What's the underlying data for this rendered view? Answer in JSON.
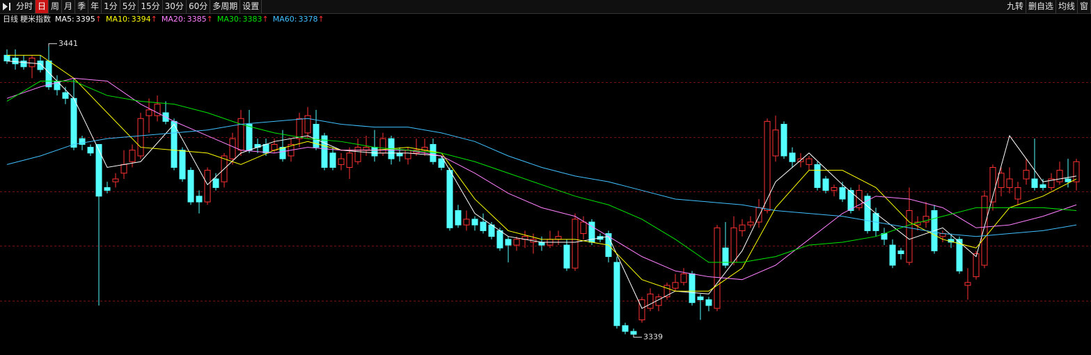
{
  "toolbar": {
    "periods": [
      {
        "label": "分时"
      },
      {
        "label": "日",
        "active": true
      },
      {
        "label": "周"
      },
      {
        "label": "月"
      },
      {
        "label": "季"
      },
      {
        "label": "年"
      },
      {
        "label": "1分"
      },
      {
        "label": "5分"
      },
      {
        "label": "15分"
      },
      {
        "label": "30分"
      },
      {
        "label": "60分"
      },
      {
        "label": "多周期"
      },
      {
        "label": "设置"
      }
    ],
    "tools": [
      "九转",
      "删自选",
      "均线",
      "窗"
    ]
  },
  "chart_data": {
    "type": "candlestick",
    "period": "日线",
    "title": "粳米指数",
    "ylim": [
      3334,
      3447
    ],
    "up_color": "#ff3232",
    "down_color": "#54ffff",
    "candles": {
      "open": [
        3437,
        3436,
        3435,
        3433,
        3435,
        3435,
        3428,
        3424,
        3422,
        3408,
        3405,
        3406,
        3391,
        3393,
        3396,
        3400,
        3402,
        3416,
        3416,
        3417,
        3414,
        3404,
        3397,
        3388,
        3386,
        3394,
        3393,
        3401,
        3404,
        3413,
        3406,
        3406,
        3404,
        3405,
        3402,
        3408,
        3410,
        3413,
        3409,
        3403,
        3399,
        3398,
        3400,
        3404,
        3405,
        3403,
        3408,
        3403,
        3401,
        3403,
        3404,
        3406,
        3401,
        3397,
        3383,
        3378,
        3380,
        3379,
        3378,
        3376,
        3373,
        3371,
        3373,
        3372,
        3372,
        3371,
        3373,
        3371,
        3363,
        3375,
        3379,
        3374,
        3375,
        3365,
        3343,
        3341,
        3345,
        3349,
        3350,
        3353,
        3356,
        3358,
        3361,
        3353,
        3352,
        3349,
        3370,
        3365,
        3376,
        3378,
        3379,
        3383,
        3402,
        3413,
        3403,
        3400,
        3399,
        3399,
        3394,
        3390,
        3391,
        3390,
        3384,
        3388,
        3382,
        3375,
        3371,
        3369,
        3365,
        3378,
        3379,
        3383,
        3374,
        3373,
        3373,
        3357,
        3360,
        3364,
        3386,
        3391,
        3391,
        3387,
        3394,
        3394,
        3392,
        3391,
        3393,
        3394,
        3393
      ],
      "high": [
        3439,
        3439,
        3437,
        3437,
        3437,
        3441,
        3430,
        3426,
        3429,
        3409,
        3406,
        3406,
        3393,
        3396,
        3404,
        3406,
        3417,
        3422,
        3423,
        3421,
        3415,
        3405,
        3398,
        3390,
        3398,
        3396,
        3403,
        3410,
        3418,
        3418,
        3408,
        3408,
        3408,
        3411,
        3408,
        3417,
        3419,
        3418,
        3410,
        3405,
        3403,
        3405,
        3408,
        3409,
        3411,
        3410,
        3409,
        3405,
        3405,
        3408,
        3408,
        3408,
        3402,
        3398,
        3385,
        3383,
        3381,
        3382,
        3379,
        3377,
        3374,
        3374,
        3376,
        3375,
        3374,
        3376,
        3376,
        3373,
        3382,
        3381,
        3380,
        3375,
        3376,
        3367,
        3344,
        3342,
        3353,
        3356,
        3354,
        3358,
        3361,
        3363,
        3362,
        3354,
        3353,
        3378,
        3379,
        3381,
        3380,
        3381,
        3387,
        3415,
        3416,
        3414,
        3405,
        3403,
        3402,
        3400,
        3395,
        3392,
        3393,
        3391,
        3392,
        3389,
        3384,
        3377,
        3373,
        3370,
        3391,
        3381,
        3386,
        3385,
        3376,
        3375,
        3374,
        3363,
        3369,
        3390,
        3399,
        3398,
        3398,
        3393,
        3401,
        3408,
        3394,
        3396,
        3400,
        3401,
        3401
      ],
      "low": [
        3434,
        3432,
        3432,
        3429,
        3431,
        3425,
        3423,
        3420,
        3404,
        3404,
        3402,
        3350,
        3389,
        3391,
        3394,
        3398,
        3401,
        3410,
        3414,
        3413,
        3397,
        3393,
        3385,
        3382,
        3385,
        3390,
        3391,
        3399,
        3402,
        3403,
        3403,
        3402,
        3403,
        3400,
        3400,
        3405,
        3408,
        3404,
        3397,
        3397,
        3397,
        3394,
        3399,
        3402,
        3400,
        3402,
        3399,
        3400,
        3399,
        3402,
        3402,
        3399,
        3397,
        3376,
        3377,
        3376,
        3376,
        3375,
        3373,
        3369,
        3365,
        3369,
        3370,
        3368,
        3369,
        3370,
        3371,
        3362,
        3362,
        3373,
        3371,
        3372,
        3365,
        3342,
        3340,
        3339,
        3344,
        3348,
        3348,
        3352,
        3355,
        3357,
        3350,
        3345,
        3348,
        3348,
        3363,
        3364,
        3374,
        3377,
        3377,
        3382,
        3400,
        3401,
        3398,
        3398,
        3397,
        3390,
        3389,
        3388,
        3386,
        3382,
        3383,
        3375,
        3374,
        3371,
        3363,
        3366,
        3364,
        3376,
        3377,
        3368,
        3372,
        3370,
        3361,
        3352,
        3359,
        3363,
        3383,
        3388,
        3389,
        3385,
        3392,
        3390,
        3390,
        3390,
        3392,
        3391,
        3390
      ],
      "close": [
        3435,
        3434,
        3433,
        3436,
        3432,
        3426,
        3425,
        3422,
        3405,
        3406,
        3403,
        3388,
        3390,
        3394,
        3399,
        3404,
        3415,
        3418,
        3420,
        3414,
        3398,
        3394,
        3386,
        3386,
        3397,
        3391,
        3402,
        3408,
        3415,
        3404,
        3405,
        3403,
        3406,
        3401,
        3406,
        3415,
        3416,
        3405,
        3398,
        3398,
        3401,
        3403,
        3405,
        3405,
        3402,
        3408,
        3401,
        3402,
        3404,
        3404,
        3405,
        3400,
        3398,
        3377,
        3378,
        3380,
        3378,
        3376,
        3374,
        3370,
        3371,
        3373,
        3374,
        3373,
        3371,
        3373,
        3374,
        3363,
        3380,
        3379,
        3372,
        3373,
        3367,
        3343,
        3341,
        3340,
        3352,
        3354,
        3353,
        3357,
        3358,
        3361,
        3351,
        3352,
        3350,
        3377,
        3364,
        3377,
        3378,
        3379,
        3384,
        3414,
        3411,
        3402,
        3400,
        3401,
        3401,
        3391,
        3390,
        3391,
        3387,
        3383,
        3390,
        3376,
        3376,
        3373,
        3364,
        3368,
        3383,
        3379,
        3381,
        3369,
        3375,
        3372,
        3362,
        3358,
        3368,
        3388,
        3398,
        3396,
        3394,
        3391,
        3397,
        3391,
        3391,
        3394,
        3397,
        3393,
        3400
      ]
    },
    "ma": {
      "x": [
        0,
        4,
        8,
        12,
        16,
        20,
        24,
        28,
        32,
        36,
        40,
        44,
        48,
        52,
        56,
        60,
        64,
        68,
        72,
        76,
        80,
        84,
        88,
        92,
        96,
        100,
        104,
        108,
        112,
        116,
        120,
        124,
        128
      ],
      "series": [
        {
          "name": "MA5:",
          "trend": "↑",
          "color": "#ffffff",
          "values": [
            3435,
            3434,
            3422,
            3398,
            3400,
            3413,
            3392,
            3403,
            3407,
            3409,
            3404,
            3403,
            3403,
            3402,
            3382,
            3374,
            3372,
            3372,
            3374,
            3349,
            3355,
            3354,
            3369,
            3393,
            3403,
            3392,
            3382,
            3373,
            3377,
            3367,
            3409,
            3393,
            3395
          ]
        },
        {
          "name": "MA10:",
          "trend": "↑",
          "color": "#ffff00",
          "values": [
            3437,
            3437,
            3429,
            3417,
            3405,
            3404,
            3403,
            3399,
            3404,
            3407,
            3404,
            3404,
            3405,
            3403,
            3387,
            3376,
            3373,
            3373,
            3371,
            3359,
            3355,
            3355,
            3363,
            3384,
            3397,
            3397,
            3391,
            3379,
            3373,
            3370,
            3384,
            3388,
            3394
          ]
        },
        {
          "name": "MA20:",
          "trend": "↑",
          "color": "#ff80ff",
          "values": [
            3422,
            3426,
            3429,
            3428,
            3420,
            3414,
            3409,
            3404,
            3403,
            3405,
            3404,
            3404,
            3404,
            3402,
            3396,
            3389,
            3384,
            3381,
            3374,
            3367,
            3362,
            3360,
            3359,
            3364,
            3373,
            3382,
            3388,
            3387,
            3384,
            3377,
            3378,
            3381,
            3385
          ]
        },
        {
          "name": "MA30:",
          "trend": "↑",
          "color": "#00e600",
          "values": [
            3421,
            3428,
            3428,
            3423,
            3421,
            3420,
            3417,
            3413,
            3410,
            3408,
            3407,
            3405,
            3404,
            3403,
            3400,
            3396,
            3392,
            3388,
            3385,
            3380,
            3373,
            3365,
            3365,
            3367,
            3371,
            3372,
            3374,
            3378,
            3381,
            3384,
            3384,
            3384,
            3383
          ]
        },
        {
          "name": "MA60:",
          "trend": "↑",
          "color": "#40c0ff",
          "values": [
            3399,
            3402,
            3406,
            3408,
            3409,
            3410,
            3411,
            3413,
            3414,
            3415,
            3413,
            3412,
            3412,
            3410,
            3407,
            3402,
            3398,
            3395,
            3393,
            3390,
            3387,
            3386,
            3385,
            3383,
            3382,
            3381,
            3379,
            3377,
            3375,
            3374,
            3375,
            3376,
            3378
          ]
        }
      ]
    }
  }
}
